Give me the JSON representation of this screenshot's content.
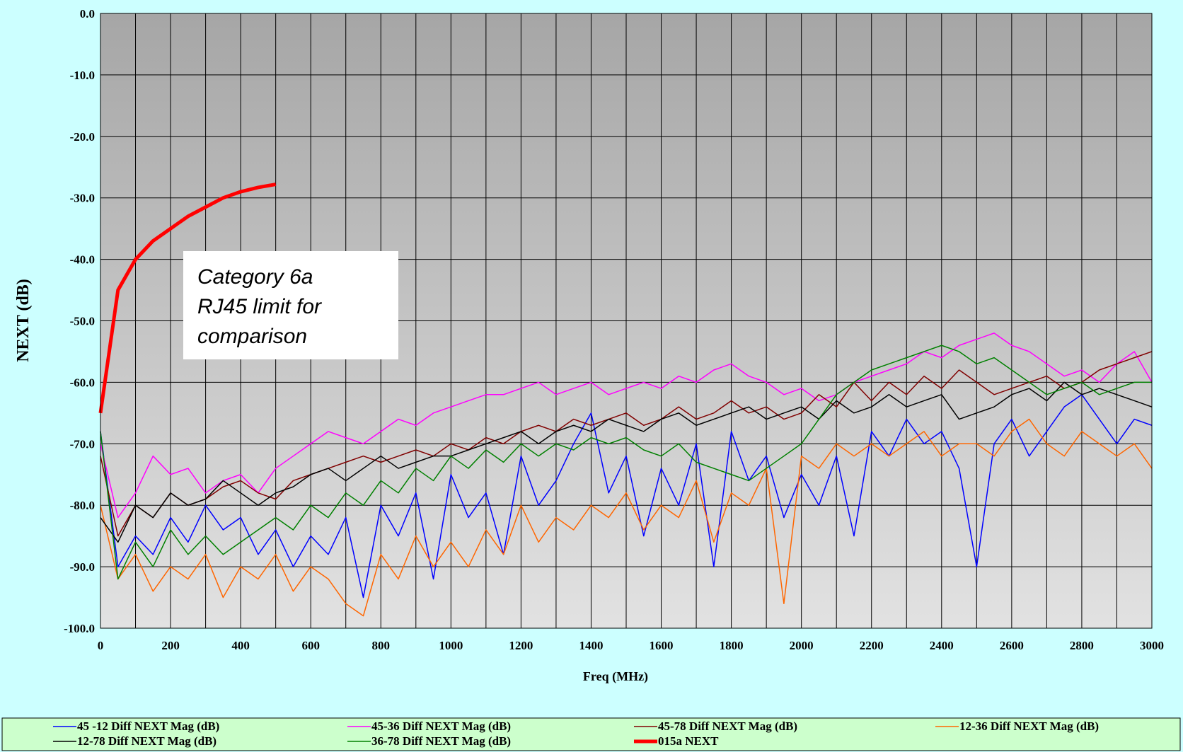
{
  "chart_data": {
    "type": "line",
    "xlabel": "Freq (MHz)",
    "ylabel": "NEXT (dB)",
    "annotation": [
      "Category 6a",
      "RJ45 limit for",
      "comparison"
    ],
    "x": [
      0,
      50,
      100,
      150,
      200,
      250,
      300,
      350,
      400,
      450,
      500,
      550,
      600,
      650,
      700,
      750,
      800,
      850,
      900,
      950,
      1000,
      1050,
      1100,
      1150,
      1200,
      1250,
      1300,
      1350,
      1400,
      1450,
      1500,
      1550,
      1600,
      1650,
      1700,
      1750,
      1800,
      1850,
      1900,
      1950,
      2000,
      2050,
      2100,
      2150,
      2200,
      2250,
      2300,
      2350,
      2400,
      2450,
      2500,
      2550,
      2600,
      2650,
      2700,
      2750,
      2800,
      2850,
      2900,
      2950,
      3000
    ],
    "xlim": [
      0,
      3000
    ],
    "xticks": [
      0,
      200,
      400,
      600,
      800,
      1000,
      1200,
      1400,
      1600,
      1800,
      2000,
      2200,
      2400,
      2600,
      2800,
      3000
    ],
    "x_minor_ticks": [
      100,
      300,
      500,
      700,
      900,
      1100,
      1300,
      1500,
      1700,
      1900,
      2100,
      2300,
      2500,
      2700,
      2900
    ],
    "ylim": [
      -100,
      0
    ],
    "yticks": [
      {
        "value": 0,
        "label": "0.0"
      },
      {
        "value": -10,
        "label": "-10.0"
      },
      {
        "value": -20,
        "label": "-20.0"
      },
      {
        "value": -30,
        "label": "-30.0"
      },
      {
        "value": -40,
        "label": "-40.0"
      },
      {
        "value": -50,
        "label": "-50.0"
      },
      {
        "value": -60,
        "label": "-60.0"
      },
      {
        "value": -70,
        "label": "-70.0"
      },
      {
        "value": -80,
        "label": "-80.0"
      },
      {
        "value": -90,
        "label": "-90.0"
      },
      {
        "value": -100,
        "label": "-100.0"
      }
    ],
    "grid": true,
    "legend": "bottom",
    "series": [
      {
        "name": "45 -12 Diff NEXT Mag (dB)",
        "color": "#0000ff",
        "values": [
          -68,
          -90,
          -85,
          -88,
          -82,
          -86,
          -80,
          -84,
          -82,
          -88,
          -84,
          -90,
          -85,
          -88,
          -82,
          -95,
          -80,
          -85,
          -78,
          -92,
          -75,
          -82,
          -78,
          -88,
          -72,
          -80,
          -76,
          -70,
          -65,
          -78,
          -72,
          -85,
          -74,
          -80,
          -70,
          -90,
          -68,
          -76,
          -72,
          -82,
          -75,
          -80,
          -72,
          -85,
          -68,
          -72,
          -66,
          -70,
          -68,
          -74,
          -90,
          -70,
          -66,
          -72,
          -68,
          -64,
          -62,
          -66,
          -70,
          -66,
          -67
        ]
      },
      {
        "name": "45-36 Diff NEXT Mag (dB)",
        "color": "#ff00ff",
        "values": [
          -70,
          -82,
          -78,
          -72,
          -75,
          -74,
          -78,
          -76,
          -75,
          -78,
          -74,
          -72,
          -70,
          -68,
          -69,
          -70,
          -68,
          -66,
          -67,
          -65,
          -64,
          -63,
          -62,
          -62,
          -61,
          -60,
          -62,
          -61,
          -60,
          -62,
          -61,
          -60,
          -61,
          -59,
          -60,
          -58,
          -57,
          -59,
          -60,
          -62,
          -61,
          -63,
          -62,
          -60,
          -59,
          -58,
          -57,
          -55,
          -56,
          -54,
          -53,
          -52,
          -54,
          -55,
          -57,
          -59,
          -58,
          -60,
          -57,
          -55,
          -60
        ]
      },
      {
        "name": "45-78 Diff NEXT Mag (dB)",
        "color": "#800000",
        "values": [
          -72,
          -85,
          -80,
          -82,
          -78,
          -80,
          -79,
          -77,
          -76,
          -78,
          -79,
          -76,
          -75,
          -74,
          -73,
          -72,
          -73,
          -72,
          -71,
          -72,
          -70,
          -71,
          -69,
          -70,
          -68,
          -67,
          -68,
          -66,
          -67,
          -66,
          -65,
          -67,
          -66,
          -64,
          -66,
          -65,
          -63,
          -65,
          -64,
          -66,
          -65,
          -62,
          -64,
          -60,
          -63,
          -60,
          -62,
          -59,
          -61,
          -58,
          -60,
          -62,
          -61,
          -60,
          -59,
          -61,
          -60,
          -58,
          -57,
          -56,
          -55
        ]
      },
      {
        "name": "12-36 Diff NEXT Mag (dB)",
        "color": "#ff6600",
        "values": [
          -80,
          -92,
          -88,
          -94,
          -90,
          -92,
          -88,
          -95,
          -90,
          -92,
          -88,
          -94,
          -90,
          -92,
          -96,
          -98,
          -88,
          -92,
          -85,
          -90,
          -86,
          -90,
          -84,
          -88,
          -80,
          -86,
          -82,
          -84,
          -80,
          -82,
          -78,
          -84,
          -80,
          -82,
          -76,
          -86,
          -78,
          -80,
          -74,
          -96,
          -72,
          -74,
          -70,
          -72,
          -70,
          -72,
          -70,
          -68,
          -72,
          -70,
          -70,
          -72,
          -68,
          -66,
          -70,
          -72,
          -68,
          -70,
          -72,
          -70,
          -74
        ]
      },
      {
        "name": "12-78 Diff NEXT Mag (dB)",
        "color": "#000000",
        "values": [
          -82,
          -86,
          -80,
          -82,
          -78,
          -80,
          -79,
          -76,
          -78,
          -80,
          -78,
          -77,
          -75,
          -74,
          -76,
          -74,
          -72,
          -74,
          -73,
          -72,
          -72,
          -71,
          -70,
          -69,
          -68,
          -70,
          -68,
          -67,
          -68,
          -66,
          -67,
          -68,
          -66,
          -65,
          -67,
          -66,
          -65,
          -64,
          -66,
          -65,
          -64,
          -66,
          -63,
          -65,
          -64,
          -62,
          -64,
          -63,
          -62,
          -66,
          -65,
          -64,
          -62,
          -61,
          -63,
          -60,
          -62,
          -61,
          -62,
          -63,
          -64
        ]
      },
      {
        "name": "36-78 Diff NEXT Mag (dB)",
        "color": "#008000",
        "values": [
          -68,
          -92,
          -86,
          -90,
          -84,
          -88,
          -85,
          -88,
          -86,
          -84,
          -82,
          -84,
          -80,
          -82,
          -78,
          -80,
          -76,
          -78,
          -74,
          -76,
          -72,
          -74,
          -71,
          -73,
          -70,
          -72,
          -70,
          -71,
          -69,
          -70,
          -69,
          -71,
          -72,
          -70,
          -73,
          -74,
          -75,
          -76,
          -74,
          -72,
          -70,
          -66,
          -62,
          -60,
          -58,
          -57,
          -56,
          -55,
          -54,
          -55,
          -57,
          -56,
          -58,
          -60,
          -62,
          -61,
          -60,
          -62,
          -61,
          -60,
          -60
        ]
      },
      {
        "name": "015a NEXT",
        "color": "#ff0000",
        "values": [
          -65,
          -45,
          -40,
          -37,
          -35,
          -33,
          -31.5,
          -30,
          -29,
          -28.3,
          -27.8,
          null,
          null,
          null,
          null,
          null,
          null,
          null,
          null,
          null,
          null,
          null,
          null,
          null,
          null,
          null,
          null,
          null,
          null,
          null,
          null,
          null,
          null,
          null,
          null,
          null,
          null,
          null,
          null,
          null,
          null,
          null,
          null,
          null,
          null,
          null,
          null,
          null,
          null,
          null,
          null,
          null,
          null,
          null,
          null,
          null,
          null,
          null,
          null,
          null,
          null
        ]
      }
    ]
  }
}
